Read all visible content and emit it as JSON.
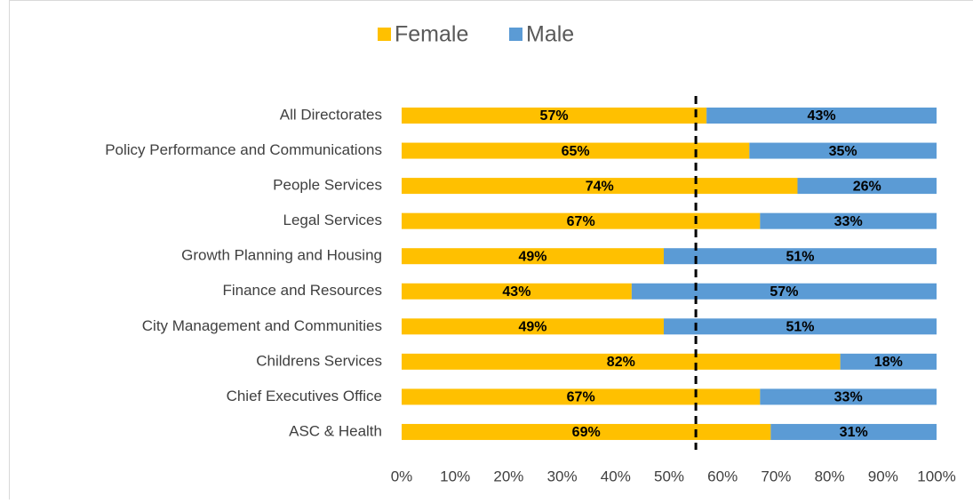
{
  "chart_data": {
    "type": "stacked_bar_horizontal",
    "categories": [
      "All Directorates",
      "Policy Performance and Communications",
      "People Services",
      "Legal Services",
      "Growth Planning and Housing",
      "Finance and Resources",
      "City Management and Communities",
      "Childrens Services",
      "Chief Executives Office",
      "ASC & Health"
    ],
    "series": [
      {
        "name": "Female",
        "color": "#FFC000",
        "values": [
          57,
          65,
          74,
          67,
          49,
          43,
          49,
          82,
          67,
          69
        ],
        "value_labels": [
          "57%",
          "65%",
          "74%",
          "67%",
          "49%",
          "43%",
          "49%",
          "82%",
          "67%",
          "69%"
        ]
      },
      {
        "name": "Male",
        "color": "#5B9BD5",
        "values": [
          43,
          35,
          26,
          33,
          51,
          57,
          51,
          18,
          33,
          31
        ],
        "value_labels": [
          "43%",
          "35%",
          "26%",
          "33%",
          "51%",
          "57%",
          "51%",
          "18%",
          "33%",
          "31%"
        ]
      }
    ],
    "xlim": [
      0,
      100
    ],
    "xticks": [
      {
        "value": 0,
        "label": "0%"
      },
      {
        "value": 10,
        "label": "10%"
      },
      {
        "value": 20,
        "label": "20%"
      },
      {
        "value": 30,
        "label": "30%"
      },
      {
        "value": 40,
        "label": "40%"
      },
      {
        "value": 50,
        "label": "50%"
      },
      {
        "value": 60,
        "label": "60%"
      },
      {
        "value": 70,
        "label": "70%"
      },
      {
        "value": 80,
        "label": "80%"
      },
      {
        "value": 90,
        "label": "90%"
      },
      {
        "value": 100,
        "label": "100%"
      }
    ],
    "reference_line": 55,
    "legend": "top"
  }
}
